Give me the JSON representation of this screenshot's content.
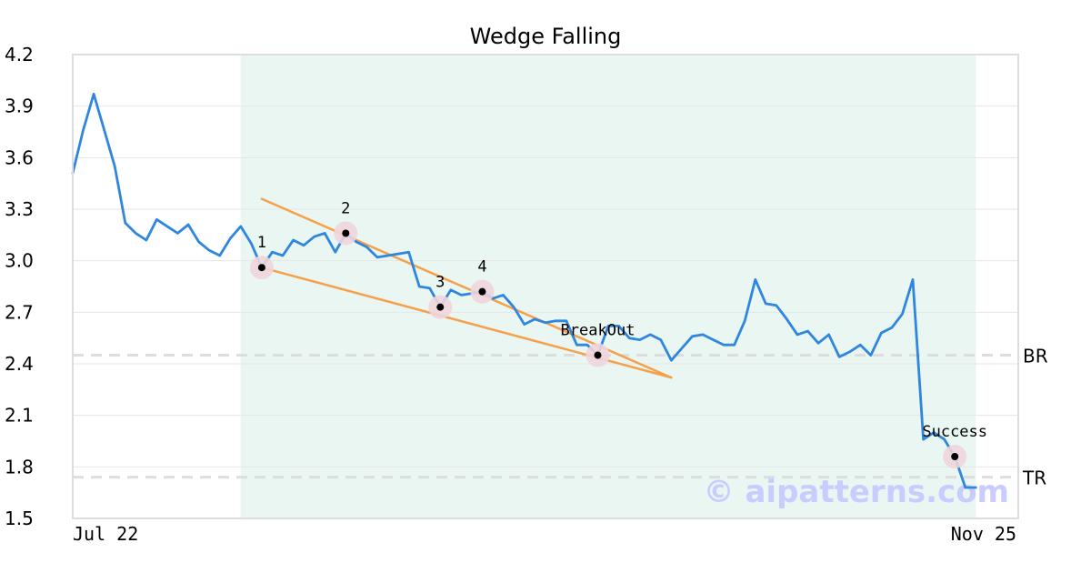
{
  "chart_data": {
    "type": "line",
    "title": "Wedge Falling",
    "xlabel": "",
    "ylabel": "",
    "ylim": [
      1.5,
      4.2
    ],
    "yticks": [
      "1.5",
      "1.8",
      "2.1",
      "2.4",
      "2.7",
      "3.0",
      "3.3",
      "3.6",
      "3.9",
      "4.2"
    ],
    "xticks": [
      {
        "label": "Jul 22",
        "index": 0
      },
      {
        "label": "Nov 25",
        "index": 86
      }
    ],
    "grid": true,
    "colors": {
      "price": "#2e86de",
      "trendline": "#f5a04a",
      "pattern_zone": "#eaf6f2",
      "marker": "#000000",
      "marker_halo": "#f0d5dc",
      "reference": "#dddddd",
      "watermark": "#c9ccff"
    },
    "series": [
      {
        "values": [
          3.51,
          3.76,
          3.97,
          3.76,
          3.55,
          3.22,
          3.16,
          3.12,
          3.24,
          3.2,
          3.16,
          3.21,
          3.11,
          3.06,
          3.03,
          3.13,
          3.2,
          3.1,
          2.96,
          3.05,
          3.03,
          3.12,
          3.09,
          3.14,
          3.16,
          3.05,
          3.16,
          3.11,
          3.08,
          3.02,
          3.03,
          3.04,
          3.05,
          2.85,
          2.84,
          2.73,
          2.83,
          2.8,
          2.81,
          2.82,
          2.78,
          2.8,
          2.73,
          2.63,
          2.66,
          2.64,
          2.65,
          2.65,
          2.51,
          2.51,
          2.45,
          2.62,
          2.62,
          2.55,
          2.54,
          2.57,
          2.54,
          2.42,
          2.49,
          2.56,
          2.57,
          2.54,
          2.51,
          2.51,
          2.65,
          2.89,
          2.75,
          2.74,
          2.66,
          2.57,
          2.59,
          2.52,
          2.57,
          2.44,
          2.47,
          2.51,
          2.45,
          2.58,
          2.61,
          2.69,
          2.89,
          1.96,
          2.0,
          1.96,
          1.86,
          1.68,
          1.68
        ]
      }
    ],
    "pattern_zone": {
      "start_index": 16,
      "end_index": 86
    },
    "trendlines": [
      {
        "x1": 18,
        "y1": 3.36,
        "x2": 57,
        "y2": 2.32
      },
      {
        "x1": 18,
        "y1": 2.96,
        "x2": 57,
        "y2": 2.32
      }
    ],
    "annotations": [
      {
        "label": "1",
        "index": 18,
        "value": 2.96
      },
      {
        "label": "2",
        "index": 26,
        "value": 3.16
      },
      {
        "label": "3",
        "index": 35,
        "value": 2.73
      },
      {
        "label": "4",
        "index": 39,
        "value": 2.82
      },
      {
        "label": "BreakOut",
        "index": 50,
        "value": 2.45
      },
      {
        "label": "Success",
        "index": 84,
        "value": 1.86
      }
    ],
    "reference_lines": [
      {
        "label": "BR",
        "value": 2.45
      },
      {
        "label": "TR",
        "value": 1.74
      }
    ],
    "watermark": "© aipatterns.com"
  }
}
